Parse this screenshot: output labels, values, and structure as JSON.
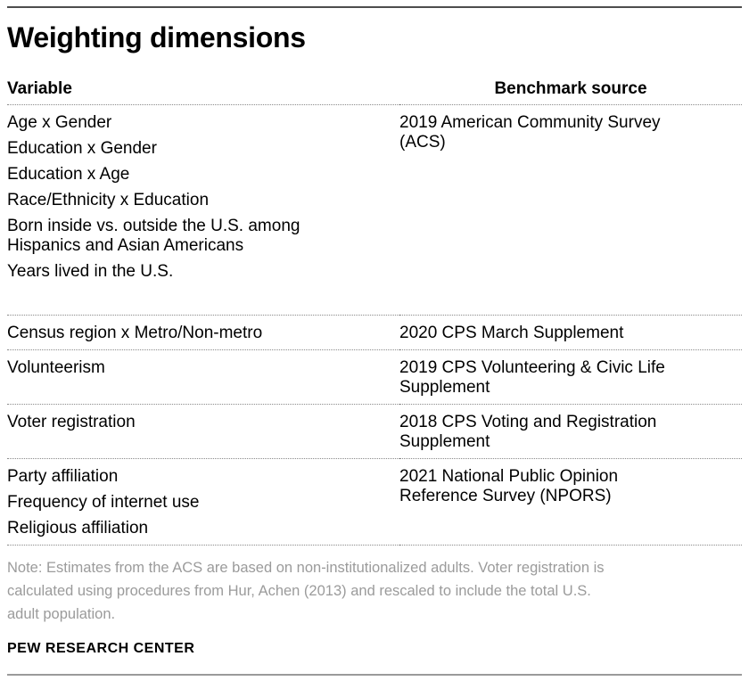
{
  "title": "Weighting dimensions",
  "table": {
    "variable_header": "Variable",
    "benchmark_header": "Benchmark source",
    "rows": [
      {
        "variables": [
          {
            "lines": [
              "Age x Gender"
            ]
          },
          {
            "lines": [
              "Education x Gender"
            ]
          },
          {
            "lines": [
              "Education x Age"
            ]
          },
          {
            "lines": [
              "Race/Ethnicity x Education"
            ]
          },
          {
            "lines": [
              "Born inside vs. outside the U.S. among",
              "Hispanics and Asian Americans"
            ]
          },
          {
            "lines": [
              "Years lived in the U.S."
            ]
          }
        ],
        "benchmark_lines": [
          "2019 American Community Survey",
          "(ACS)"
        ]
      },
      {
        "variables": [
          {
            "lines": [
              "Census region x Metro/Non-metro"
            ]
          }
        ],
        "benchmark_lines": [
          "2020 CPS March Supplement"
        ]
      },
      {
        "variables": [
          {
            "lines": [
              "Volunteerism"
            ]
          }
        ],
        "benchmark_lines": [
          "2019 CPS Volunteering & Civic Life",
          "Supplement"
        ]
      },
      {
        "variables": [
          {
            "lines": [
              "Voter registration"
            ]
          }
        ],
        "benchmark_lines": [
          "2018 CPS Voting and Registration",
          "Supplement"
        ]
      },
      {
        "variables": [
          {
            "lines": [
              "Party affiliation"
            ]
          },
          {
            "lines": [
              "Frequency of internet use"
            ]
          },
          {
            "lines": [
              "Religious affiliation"
            ]
          }
        ],
        "benchmark_lines": [
          "2021 National Public Opinion",
          "Reference Survey (NPORS)"
        ]
      }
    ]
  },
  "note_lines": [
    "Note: Estimates from the ACS are based on non-institutionalized adults. Voter registration is",
    "calculated using procedures from Hur, Achen (2013) and rescaled to include the total U.S.",
    "adult population."
  ],
  "source_label": "PEW RESEARCH CENTER",
  "colors": {
    "text": "#000000",
    "note_gray": "#9b9b9b",
    "rule_top": "#4d4d4d",
    "rule_bottom": "#9a9a9a",
    "dotted_separator": "#8a8a8a",
    "background": "#ffffff"
  }
}
